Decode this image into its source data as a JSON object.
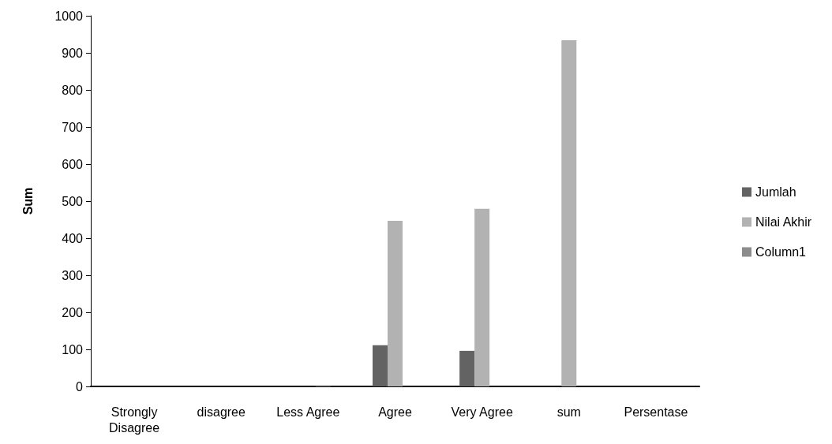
{
  "chart_data": {
    "type": "bar",
    "ylabel": "Sum",
    "categories": [
      "Strongly\nDisagree",
      "disagree",
      "Less Agree",
      "Agree",
      "Very Agree",
      "sum",
      "Persentase"
    ],
    "series": [
      {
        "name": "Jumlah",
        "color": "#636363",
        "values": [
          0,
          0,
          0,
          111,
          96,
          0,
          0
        ]
      },
      {
        "name": "Nilai Akhir",
        "color": "#b2b2b2",
        "values": [
          0,
          0,
          0,
          447,
          479,
          934,
          0
        ]
      },
      {
        "name": "Column1",
        "color": "#8c8c8c",
        "values": [
          0,
          0,
          3,
          0,
          0,
          0,
          0
        ]
      }
    ],
    "ylim": [
      0,
      1000
    ],
    "yticks": [
      0,
      100,
      200,
      300,
      400,
      500,
      600,
      700,
      800,
      900,
      1000
    ],
    "grid": false,
    "legend": "right"
  }
}
